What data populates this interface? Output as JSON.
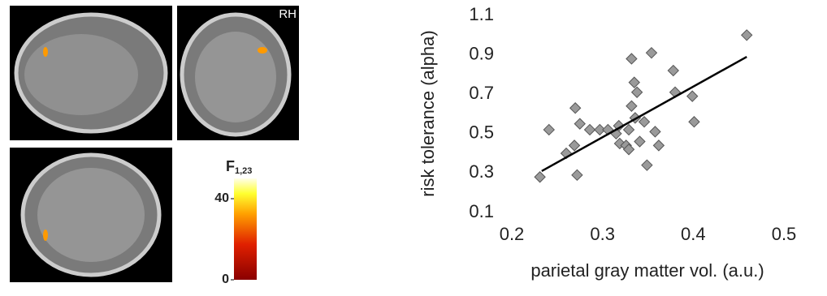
{
  "chart_data": {
    "type": "scatter",
    "x_label": "parietal gray matter vol. (a.u.)",
    "y_label": "risk tolerance (alpha)",
    "xlim": [
      0.2,
      0.5
    ],
    "xticks": [
      0.2,
      0.3,
      0.4,
      0.5
    ],
    "ylim": [
      0.1,
      1.1
    ],
    "yticks": [
      0.1,
      0.3,
      0.5,
      0.7,
      0.9,
      1.1
    ],
    "x": [
      0.231,
      0.241,
      0.27,
      0.26,
      0.269,
      0.275,
      0.272,
      0.286,
      0.297,
      0.306,
      0.315,
      0.318,
      0.319,
      0.326,
      0.329,
      0.329,
      0.332,
      0.332,
      0.335,
      0.338,
      0.336,
      0.341,
      0.346,
      0.349,
      0.354,
      0.358,
      0.362,
      0.378,
      0.38,
      0.399,
      0.401,
      0.459
    ],
    "values": [
      0.28,
      0.52,
      0.63,
      0.4,
      0.44,
      0.55,
      0.29,
      0.52,
      0.52,
      0.52,
      0.5,
      0.54,
      0.45,
      0.44,
      0.42,
      0.52,
      0.64,
      0.88,
      0.76,
      0.71,
      0.58,
      0.46,
      0.56,
      0.34,
      0.91,
      0.51,
      0.44,
      0.82,
      0.71,
      0.69,
      0.56,
      1.0
    ],
    "color": "#9a9a9a",
    "fit_line": {
      "x": [
        0.233,
        0.459
      ],
      "values": [
        0.31,
        0.89
      ],
      "color": "#000000"
    }
  },
  "brain_panel": {
    "hemisphere_label": "RH",
    "colorbar": {
      "label": "F",
      "label_sub": "1,23",
      "lim": [
        0,
        50
      ],
      "ticks": [
        0,
        40
      ]
    }
  }
}
